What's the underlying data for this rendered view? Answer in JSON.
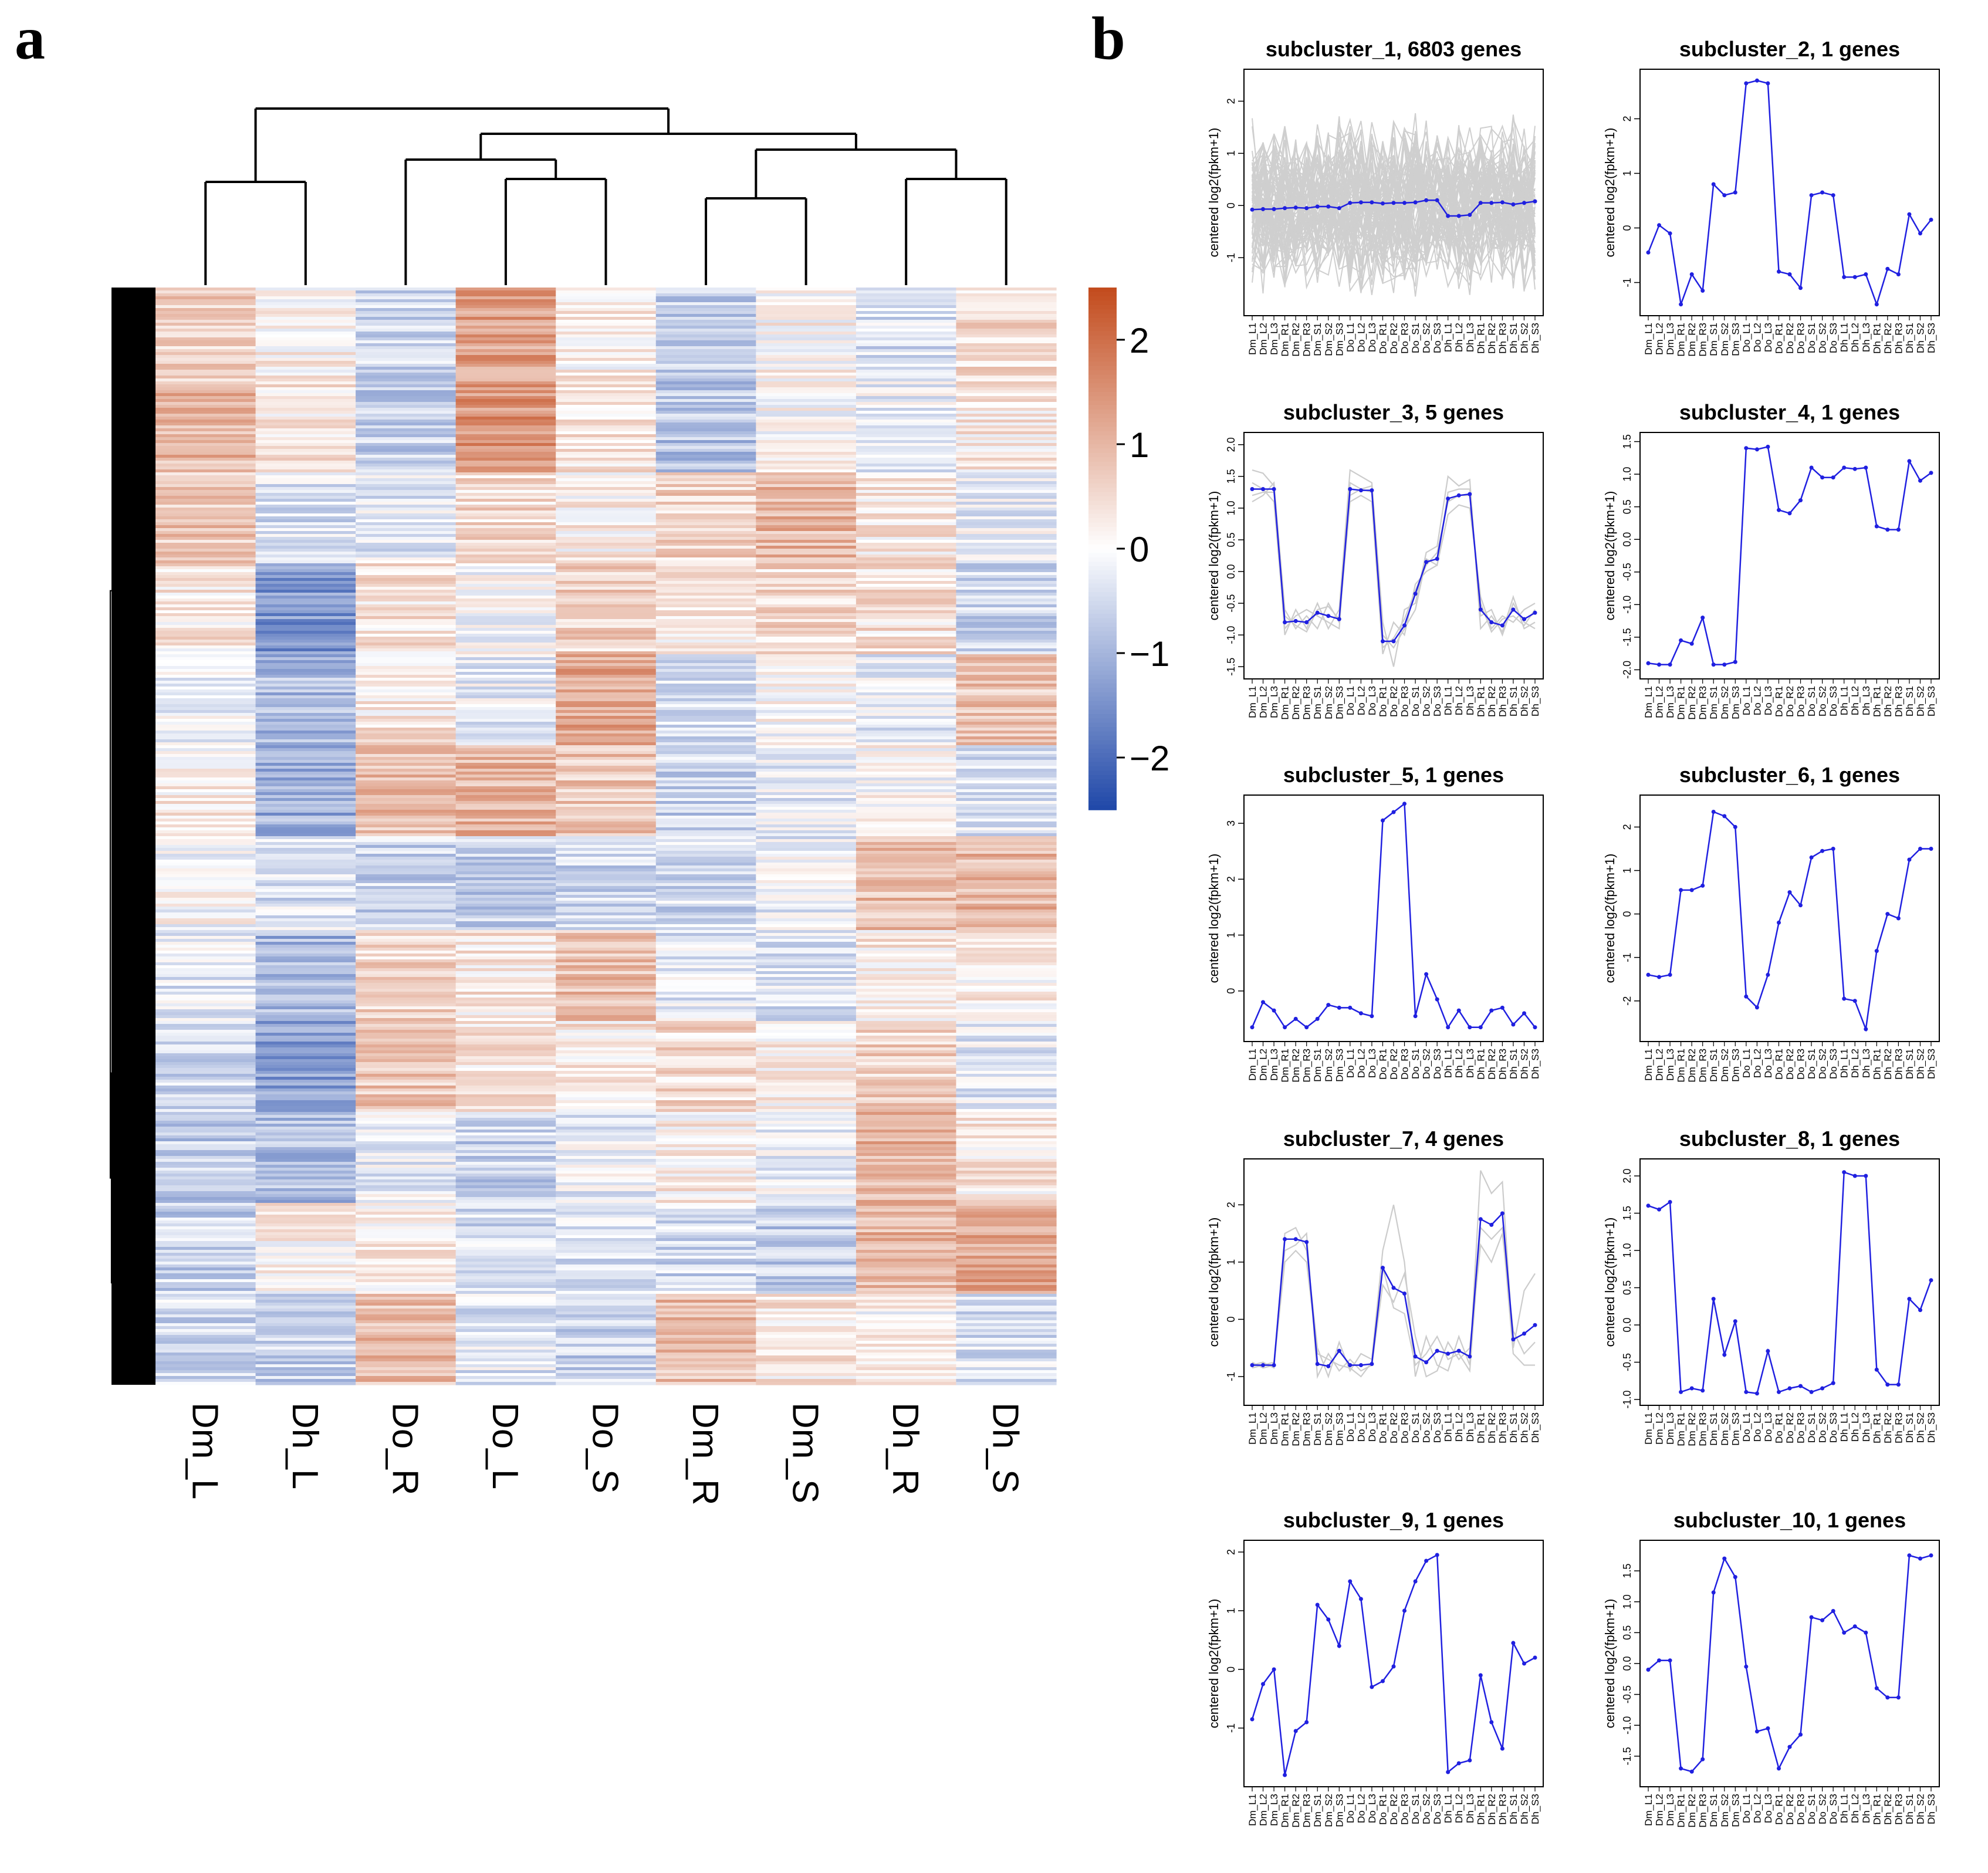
{
  "panel_a": {
    "letter": "a",
    "column_labels": [
      "Dm_L",
      "Dh_L",
      "Do_R",
      "Do_L",
      "Do_S",
      "Dm_R",
      "Dm_S",
      "Dh_R",
      "Dh_S"
    ],
    "colorbar_ticks": [
      "2",
      "1",
      "0",
      "−1",
      "−2"
    ],
    "colors": {
      "high": "#c24a1c",
      "mid": "#ffffff",
      "low": "#1f47a8"
    }
  },
  "panel_b": {
    "letter": "b"
  },
  "chart_data": [
    {
      "type": "heatmap",
      "title": "",
      "columns": [
        "Dm_L",
        "Dh_L",
        "Do_R",
        "Do_L",
        "Do_S",
        "Dm_R",
        "Dm_S",
        "Dh_R",
        "Dh_S"
      ],
      "color_scale": {
        "min": -2.5,
        "max": 2.5,
        "ticks": [
          2,
          1,
          0,
          -1,
          -2
        ]
      },
      "column_dendrogram": "(((Dm_L,Dh_L),((Do_R,(Do_L,Do_S)),((Dm_R,Dm_S),(Dh_R,Dh_S)))))",
      "row_blocks_approx": [
        [
          0.6,
          0.2,
          -0.5,
          1.3,
          0.2,
          -0.6,
          0.1,
          -0.4,
          0.5
        ],
        [
          1.0,
          0.3,
          -0.6,
          1.5,
          0.4,
          -0.8,
          0.0,
          -0.2,
          0.3
        ],
        [
          0.8,
          -0.4,
          -0.3,
          0.5,
          0.2,
          0.6,
          1.0,
          0.3,
          -0.2
        ],
        [
          0.3,
          -1.4,
          0.4,
          0.0,
          0.6,
          0.3,
          0.5,
          0.4,
          -0.6
        ],
        [
          -0.2,
          -0.9,
          0.3,
          -0.2,
          1.2,
          -0.4,
          0.0,
          -0.3,
          0.8
        ],
        [
          0.2,
          -1.1,
          0.9,
          1.0,
          0.8,
          -0.6,
          -0.3,
          0.0,
          -0.4
        ],
        [
          0.0,
          -0.4,
          -0.6,
          -0.7,
          -0.6,
          -0.5,
          -0.2,
          0.9,
          1.0
        ],
        [
          -0.3,
          -1.0,
          0.6,
          0.3,
          0.9,
          -0.3,
          -0.4,
          0.3,
          0.2
        ],
        [
          -0.5,
          -1.3,
          0.8,
          0.4,
          0.3,
          0.5,
          0.2,
          0.6,
          -0.3
        ],
        [
          -0.7,
          -0.9,
          -0.2,
          -0.6,
          -0.2,
          0.2,
          -0.2,
          1.0,
          0.3
        ],
        [
          -0.6,
          0.2,
          0.2,
          -0.5,
          -0.4,
          -0.5,
          -0.7,
          1.0,
          1.2
        ],
        [
          -0.5,
          -0.6,
          0.9,
          -0.3,
          -0.6,
          0.9,
          0.3,
          0.1,
          -0.4
        ]
      ]
    },
    {
      "type": "line",
      "title": "subcluster_1, 6803 genes",
      "ylabel": "centered log2(fpkm+1)",
      "ylim": [
        -2,
        2.5
      ],
      "yticks": [
        -1,
        0,
        1,
        2
      ],
      "x": [
        "Dm_L1",
        "Dm_L2",
        "Dm_L3",
        "Dm_R1",
        "Dm_R2",
        "Dm_R3",
        "Dm_S1",
        "Dm_S2",
        "Dm_S3",
        "Do_L1",
        "Do_L2",
        "Do_L3",
        "Do_R1",
        "Do_R2",
        "Do_R3",
        "Do_S1",
        "Do_S2",
        "Do_S3",
        "Dh_L1",
        "Dh_L2",
        "Dh_L3",
        "Dh_R1",
        "Dh_R2",
        "Dh_R3",
        "Dh_S1",
        "Dh_S2",
        "Dh_S3"
      ],
      "values": [
        -0.08,
        -0.07,
        -0.07,
        -0.05,
        -0.04,
        -0.05,
        -0.02,
        -0.02,
        -0.05,
        0.05,
        0.06,
        0.06,
        0.04,
        0.05,
        0.05,
        0.06,
        0.1,
        0.1,
        -0.2,
        -0.2,
        -0.18,
        0.05,
        0.05,
        0.06,
        0.02,
        0.05,
        0.08
      ],
      "background_band": [
        -1.8,
        1.8
      ]
    },
    {
      "type": "line",
      "title": "subcluster_2, 1 genes",
      "ylabel": "centered log2(fpkm+1)",
      "ylim": [
        -1.5,
        2.8
      ],
      "yticks": [
        -1,
        0,
        1,
        2
      ],
      "x": [
        "Dm_L1",
        "Dm_L2",
        "Dm_L3",
        "Dm_R1",
        "Dm_R2",
        "Dm_R3",
        "Dm_S1",
        "Dm_S2",
        "Dm_S3",
        "Do_L1",
        "Do_L2",
        "Do_L3",
        "Do_R1",
        "Do_R2",
        "Do_R3",
        "Do_S1",
        "Do_S2",
        "Do_S3",
        "Dh_L1",
        "Dh_L2",
        "Dh_L3",
        "Dh_R1",
        "Dh_R2",
        "Dh_R3",
        "Dh_S1",
        "Dh_S2",
        "Dh_S3"
      ],
      "values": [
        -0.45,
        0.05,
        -0.1,
        -1.4,
        -0.85,
        -1.15,
        0.8,
        0.6,
        0.65,
        2.65,
        2.7,
        2.65,
        -0.8,
        -0.85,
        -1.1,
        0.6,
        0.65,
        0.6,
        -0.9,
        -0.9,
        -0.85,
        -1.4,
        -0.75,
        -0.85,
        0.25,
        -0.1,
        0.15
      ]
    },
    {
      "type": "line",
      "title": "subcluster_3, 5 genes",
      "ylabel": "centered log2(fpkm+1)",
      "ylim": [
        -1.6,
        2.1
      ],
      "yticks": [
        -1.5,
        -1.0,
        -0.5,
        0.0,
        0.5,
        1.0,
        1.5,
        2.0
      ],
      "x": [
        "Dm_L1",
        "Dm_L2",
        "Dm_L3",
        "Dm_R1",
        "Dm_R2",
        "Dm_R3",
        "Dm_S1",
        "Dm_S2",
        "Dm_S3",
        "Do_L1",
        "Do_L2",
        "Do_L3",
        "Do_R1",
        "Do_R2",
        "Do_R3",
        "Do_S1",
        "Do_S2",
        "Do_S3",
        "Dh_L1",
        "Dh_L2",
        "Dh_L3",
        "Dh_R1",
        "Dh_R2",
        "Dh_R3",
        "Dh_S1",
        "Dh_S2",
        "Dh_S3"
      ],
      "values": [
        1.3,
        1.3,
        1.3,
        -0.8,
        -0.78,
        -0.8,
        -0.65,
        -0.7,
        -0.75,
        1.3,
        1.28,
        1.28,
        -1.1,
        -1.1,
        -0.85,
        -0.35,
        0.15,
        0.2,
        1.15,
        1.2,
        1.22,
        -0.6,
        -0.8,
        -0.85,
        -0.6,
        -0.75,
        -0.65
      ],
      "extra_series": [
        [
          1.6,
          1.55,
          1.35,
          -1.0,
          -0.6,
          -0.9,
          -0.5,
          -0.9,
          -0.6,
          1.6,
          1.5,
          1.4,
          -0.8,
          -1.5,
          -0.6,
          -0.5,
          0.3,
          0.4,
          1.5,
          1.35,
          1.45,
          -0.9,
          -0.7,
          -0.95,
          -0.4,
          -0.9,
          -0.8
        ],
        [
          1.1,
          1.2,
          1.4,
          -0.6,
          -0.9,
          -0.7,
          -0.9,
          -0.5,
          -0.8,
          1.1,
          1.2,
          1.1,
          -1.3,
          -0.8,
          -1.0,
          -0.2,
          0.0,
          0.1,
          0.9,
          1.05,
          1.0,
          -0.4,
          -0.9,
          -0.7,
          -0.8,
          -0.6,
          -0.5
        ],
        [
          1.4,
          1.3,
          1.1,
          -0.9,
          -0.7,
          -0.6,
          -0.7,
          -0.8,
          -0.9,
          1.4,
          1.3,
          1.35,
          -1.0,
          -1.2,
          -0.9,
          -0.6,
          0.2,
          0.1,
          1.25,
          1.3,
          1.3,
          -0.7,
          -0.6,
          -1.0,
          -0.5,
          -0.8,
          -0.9
        ],
        [
          1.2,
          1.25,
          1.25,
          -0.7,
          -0.85,
          -0.95,
          -0.6,
          -0.55,
          -0.75,
          1.2,
          1.3,
          1.25,
          -1.2,
          -1.05,
          -0.75,
          -0.3,
          0.1,
          0.3,
          1.1,
          1.2,
          1.2,
          -0.5,
          -0.95,
          -0.75,
          -0.7,
          -0.85,
          -0.6
        ]
      ]
    },
    {
      "type": "line",
      "title": "subcluster_4, 1 genes",
      "ylabel": "centered log2(fpkm+1)",
      "ylim": [
        -2.05,
        1.55
      ],
      "yticks": [
        -2.0,
        -1.5,
        -1.0,
        -0.5,
        0.0,
        0.5,
        1.0,
        1.5
      ],
      "x": [
        "Dm_L1",
        "Dm_L2",
        "Dm_L3",
        "Dm_R1",
        "Dm_R2",
        "Dm_R3",
        "Dm_S1",
        "Dm_S2",
        "Dm_S3",
        "Do_L1",
        "Do_L2",
        "Do_L3",
        "Do_R1",
        "Do_R2",
        "Do_R3",
        "Do_S1",
        "Do_S2",
        "Do_S3",
        "Dh_L1",
        "Dh_L2",
        "Dh_L3",
        "Dh_R1",
        "Dh_R2",
        "Dh_R3",
        "Dh_S1",
        "Dh_S2",
        "Dh_S3"
      ],
      "values": [
        -1.9,
        -1.92,
        -1.92,
        -1.55,
        -1.6,
        -1.2,
        -1.92,
        -1.92,
        -1.88,
        1.4,
        1.38,
        1.42,
        0.45,
        0.4,
        0.6,
        1.1,
        0.95,
        0.95,
        1.1,
        1.08,
        1.1,
        0.2,
        0.15,
        0.15,
        1.2,
        0.9,
        1.02
      ]
    },
    {
      "type": "line",
      "title": "subcluster_5, 1 genes",
      "ylabel": "centered log2(fpkm+1)",
      "ylim": [
        -0.8,
        3.4
      ],
      "yticks": [
        0,
        1,
        2,
        3
      ],
      "x": [
        "Dm_L1",
        "Dm_L2",
        "Dm_L3",
        "Dm_R1",
        "Dm_R2",
        "Dm_R3",
        "Dm_S1",
        "Dm_S2",
        "Dm_S3",
        "Do_L1",
        "Do_L2",
        "Do_L3",
        "Do_R1",
        "Do_R2",
        "Do_R3",
        "Do_S1",
        "Do_S2",
        "Do_S3",
        "Dh_L1",
        "Dh_L2",
        "Dh_L3",
        "Dh_R1",
        "Dh_R2",
        "Dh_R3",
        "Dh_S1",
        "Dh_S2",
        "Dh_S3"
      ],
      "values": [
        -0.65,
        -0.2,
        -0.35,
        -0.65,
        -0.5,
        -0.65,
        -0.5,
        -0.25,
        -0.3,
        -0.3,
        -0.4,
        -0.45,
        3.05,
        3.2,
        3.35,
        -0.45,
        0.3,
        -0.15,
        -0.65,
        -0.35,
        -0.65,
        -0.65,
        -0.35,
        -0.3,
        -0.6,
        -0.4,
        -0.65
      ]
    },
    {
      "type": "line",
      "title": "subcluster_6, 1 genes",
      "ylabel": "centered log2(fpkm+1)",
      "ylim": [
        -2.8,
        2.6
      ],
      "yticks": [
        -2,
        -1,
        0,
        1,
        2
      ],
      "x": [
        "Dm_L1",
        "Dm_L2",
        "Dm_L3",
        "Dm_R1",
        "Dm_R2",
        "Dm_R3",
        "Dm_S1",
        "Dm_S2",
        "Dm_S3",
        "Do_L1",
        "Do_L2",
        "Do_L3",
        "Do_R1",
        "Do_R2",
        "Do_R3",
        "Do_S1",
        "Do_S2",
        "Do_S3",
        "Dh_L1",
        "Dh_L2",
        "Dh_L3",
        "Dh_R1",
        "Dh_R2",
        "Dh_R3",
        "Dh_S1",
        "Dh_S2",
        "Dh_S3"
      ],
      "values": [
        -1.4,
        -1.45,
        -1.4,
        0.55,
        0.55,
        0.65,
        2.35,
        2.25,
        2.0,
        -1.9,
        -2.15,
        -1.4,
        -0.2,
        0.5,
        0.2,
        1.3,
        1.45,
        1.5,
        -1.95,
        -2.0,
        -2.65,
        -0.85,
        0.0,
        -0.1,
        1.25,
        1.5,
        1.5
      ]
    },
    {
      "type": "line",
      "title": "subcluster_7, 4 genes",
      "ylabel": "centered log2(fpkm+1)",
      "ylim": [
        -1.4,
        2.7
      ],
      "yticks": [
        -1,
        0,
        1,
        2
      ],
      "x": [
        "Dm_L1",
        "Dm_L2",
        "Dm_L3",
        "Dm_R1",
        "Dm_R2",
        "Dm_R3",
        "Dm_S1",
        "Dm_S2",
        "Dm_S3",
        "Do_L1",
        "Do_L2",
        "Do_L3",
        "Do_R1",
        "Do_R2",
        "Do_R3",
        "Do_S1",
        "Do_S2",
        "Do_S3",
        "Dh_L1",
        "Dh_L2",
        "Dh_L3",
        "Dh_R1",
        "Dh_R2",
        "Dh_R3",
        "Dh_S1",
        "Dh_S2",
        "Dh_S3"
      ],
      "values": [
        -0.8,
        -0.8,
        -0.8,
        1.4,
        1.4,
        1.35,
        -0.78,
        -0.82,
        -0.55,
        -0.8,
        -0.8,
        -0.78,
        0.9,
        0.55,
        0.45,
        -0.65,
        -0.75,
        -0.55,
        -0.6,
        -0.55,
        -0.65,
        1.75,
        1.65,
        1.85,
        -0.35,
        -0.25,
        -0.1
      ],
      "extra_series": [
        [
          -0.8,
          -0.75,
          -0.85,
          1.5,
          1.6,
          1.2,
          -0.5,
          -1.0,
          -0.4,
          -0.9,
          -0.6,
          -0.7,
          1.2,
          2.0,
          1.0,
          -1.0,
          -0.3,
          -0.8,
          -0.9,
          -0.3,
          -0.8,
          2.6,
          2.2,
          2.4,
          -0.5,
          0.5,
          0.8
        ],
        [
          -0.85,
          -0.8,
          -0.75,
          1.2,
          1.3,
          1.5,
          -1.0,
          -0.6,
          -0.9,
          -0.7,
          -0.9,
          -0.8,
          0.6,
          0.3,
          0.8,
          -0.3,
          -1.0,
          -0.9,
          -0.4,
          -0.7,
          -0.5,
          1.3,
          1.0,
          1.5,
          -0.2,
          -0.6,
          -0.4
        ],
        [
          -0.75,
          -0.85,
          -0.8,
          1.0,
          1.2,
          1.0,
          -0.6,
          -0.7,
          -0.8,
          -0.85,
          -1.0,
          -0.75,
          0.9,
          0.2,
          0.1,
          -0.8,
          -0.6,
          -0.3,
          -0.7,
          -0.6,
          -0.9,
          1.6,
          1.4,
          1.6,
          -0.6,
          -0.8,
          -0.8
        ]
      ]
    },
    {
      "type": "line",
      "title": "subcluster_8, 1 genes",
      "ylabel": "centered log2(fpkm+1)",
      "ylim": [
        -1.0,
        2.15
      ],
      "yticks": [
        -1.0,
        -0.5,
        0.0,
        0.5,
        1.0,
        1.5,
        2.0
      ],
      "x": [
        "Dm_L1",
        "Dm_L2",
        "Dm_L3",
        "Dm_R1",
        "Dm_R2",
        "Dm_R3",
        "Dm_S1",
        "Dm_S2",
        "Dm_S3",
        "Do_L1",
        "Do_L2",
        "Do_L3",
        "Do_R1",
        "Do_R2",
        "Do_R3",
        "Do_S1",
        "Do_S2",
        "Do_S3",
        "Dh_L1",
        "Dh_L2",
        "Dh_L3",
        "Dh_R1",
        "Dh_R2",
        "Dh_R3",
        "Dh_S1",
        "Dh_S2",
        "Dh_S3"
      ],
      "values": [
        1.6,
        1.55,
        1.65,
        -0.9,
        -0.85,
        -0.88,
        0.35,
        -0.4,
        0.05,
        -0.9,
        -0.92,
        -0.35,
        -0.9,
        -0.85,
        -0.82,
        -0.9,
        -0.85,
        -0.78,
        2.05,
        2.0,
        2.0,
        -0.6,
        -0.8,
        -0.8,
        0.35,
        0.2,
        0.6
      ]
    },
    {
      "type": "line",
      "title": "subcluster_9, 1 genes",
      "ylabel": "centered log2(fpkm+1)",
      "ylim": [
        -1.9,
        2.1
      ],
      "yticks": [
        -1,
        0,
        1,
        2
      ],
      "x": [
        "Dm_L1",
        "Dm_L2",
        "Dm_L3",
        "Dm_R1",
        "Dm_R2",
        "Dm_R3",
        "Dm_S1",
        "Dm_S2",
        "Dm_S3",
        "Do_L1",
        "Do_L2",
        "Do_L3",
        "Do_R1",
        "Do_R2",
        "Do_R3",
        "Do_S1",
        "Do_S2",
        "Do_S3",
        "Dh_L1",
        "Dh_L2",
        "Dh_L3",
        "Dh_R1",
        "Dh_R2",
        "Dh_R3",
        "Dh_S1",
        "Dh_S2",
        "Dh_S3"
      ],
      "values": [
        -0.85,
        -0.25,
        0.0,
        -1.8,
        -1.05,
        -0.9,
        1.1,
        0.85,
        0.4,
        1.5,
        1.2,
        -0.3,
        -0.2,
        0.05,
        1.0,
        1.5,
        1.85,
        1.95,
        -1.75,
        -1.6,
        -1.55,
        -0.1,
        -0.9,
        -1.35,
        0.45,
        0.1,
        0.2
      ]
    },
    {
      "type": "line",
      "title": "subcluster_10, 1 genes",
      "ylabel": "centered log2(fpkm+1)",
      "ylim": [
        -1.9,
        1.9
      ],
      "yticks": [
        -1.5,
        -1.0,
        -0.5,
        0.0,
        0.5,
        1.0,
        1.5
      ],
      "x": [
        "Dm_L1",
        "Dm_L2",
        "Dm_L3",
        "Dm_R1",
        "Dm_R2",
        "Dm_R3",
        "Dm_S1",
        "Dm_S2",
        "Dm_S3",
        "Do_L1",
        "Do_L2",
        "Do_L3",
        "Do_R1",
        "Do_R2",
        "Do_R3",
        "Do_S1",
        "Do_S2",
        "Do_S3",
        "Dh_L1",
        "Dh_L2",
        "Dh_L3",
        "Dh_R1",
        "Dh_R2",
        "Dh_R3",
        "Dh_S1",
        "Dh_S2",
        "Dh_S3"
      ],
      "values": [
        -0.1,
        0.05,
        0.05,
        -1.7,
        -1.75,
        -1.55,
        1.15,
        1.7,
        1.4,
        -0.05,
        -1.1,
        -1.05,
        -1.7,
        -1.35,
        -1.15,
        0.75,
        0.7,
        0.85,
        0.5,
        0.6,
        0.5,
        -0.4,
        -0.55,
        -0.55,
        1.75,
        1.7,
        1.75
      ]
    }
  ]
}
